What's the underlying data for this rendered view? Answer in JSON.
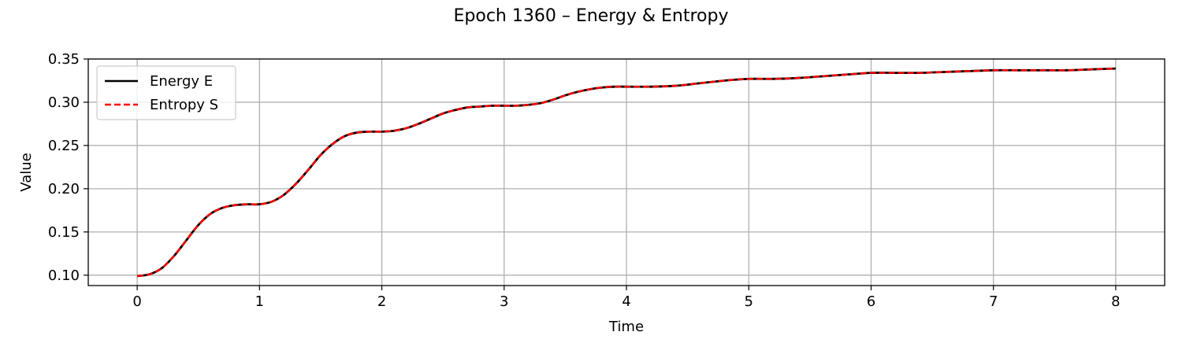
{
  "chart_data": {
    "type": "line",
    "title": "Epoch 1360 – Energy & Entropy",
    "xlabel": "Time",
    "ylabel": "Value",
    "xlim": [
      -0.4,
      8.4
    ],
    "ylim": [
      0.088,
      0.35
    ],
    "xticks": [
      "0",
      "1",
      "2",
      "3",
      "4",
      "5",
      "6",
      "7",
      "8"
    ],
    "yticks": [
      "0.10",
      "0.15",
      "0.20",
      "0.25",
      "0.30",
      "0.35"
    ],
    "grid": true,
    "legend_position": "upper-left",
    "x": [
      0,
      0.1,
      0.2,
      0.3,
      0.4,
      0.5,
      0.6,
      0.7,
      0.8,
      0.9,
      1.0,
      1.1,
      1.2,
      1.3,
      1.4,
      1.5,
      1.6,
      1.7,
      1.8,
      1.9,
      2.0,
      2.1,
      2.2,
      2.3,
      2.4,
      2.5,
      2.6,
      2.7,
      2.8,
      2.9,
      3.0,
      3.1,
      3.2,
      3.3,
      3.4,
      3.5,
      3.6,
      3.7,
      3.8,
      3.9,
      4.0,
      4.2,
      4.4,
      4.6,
      4.8,
      5.0,
      5.2,
      5.4,
      5.6,
      5.8,
      6.0,
      6.2,
      6.4,
      6.6,
      6.8,
      7.0,
      7.2,
      7.4,
      7.6,
      7.8,
      8.0
    ],
    "series": [
      {
        "name": "Energy E",
        "color": "#000000",
        "style": "solid",
        "values": [
          0.099,
          0.101,
          0.108,
          0.122,
          0.14,
          0.158,
          0.171,
          0.178,
          0.181,
          0.182,
          0.182,
          0.185,
          0.193,
          0.206,
          0.222,
          0.239,
          0.252,
          0.261,
          0.265,
          0.266,
          0.266,
          0.267,
          0.27,
          0.275,
          0.281,
          0.287,
          0.291,
          0.294,
          0.295,
          0.296,
          0.296,
          0.296,
          0.297,
          0.299,
          0.303,
          0.308,
          0.312,
          0.315,
          0.317,
          0.318,
          0.318,
          0.318,
          0.319,
          0.322,
          0.325,
          0.327,
          0.327,
          0.328,
          0.33,
          0.332,
          0.334,
          0.334,
          0.334,
          0.335,
          0.336,
          0.337,
          0.337,
          0.337,
          0.337,
          0.338,
          0.339
        ]
      },
      {
        "name": "Entropy S",
        "color": "#ff0000",
        "style": "dashed",
        "values": [
          0.099,
          0.101,
          0.108,
          0.122,
          0.14,
          0.158,
          0.171,
          0.178,
          0.181,
          0.182,
          0.182,
          0.185,
          0.193,
          0.206,
          0.222,
          0.239,
          0.252,
          0.261,
          0.265,
          0.266,
          0.266,
          0.267,
          0.27,
          0.275,
          0.281,
          0.287,
          0.291,
          0.294,
          0.295,
          0.296,
          0.296,
          0.296,
          0.297,
          0.299,
          0.303,
          0.308,
          0.312,
          0.315,
          0.317,
          0.318,
          0.318,
          0.318,
          0.319,
          0.322,
          0.325,
          0.327,
          0.327,
          0.328,
          0.33,
          0.332,
          0.334,
          0.334,
          0.334,
          0.335,
          0.336,
          0.337,
          0.337,
          0.337,
          0.337,
          0.338,
          0.339
        ]
      }
    ]
  }
}
